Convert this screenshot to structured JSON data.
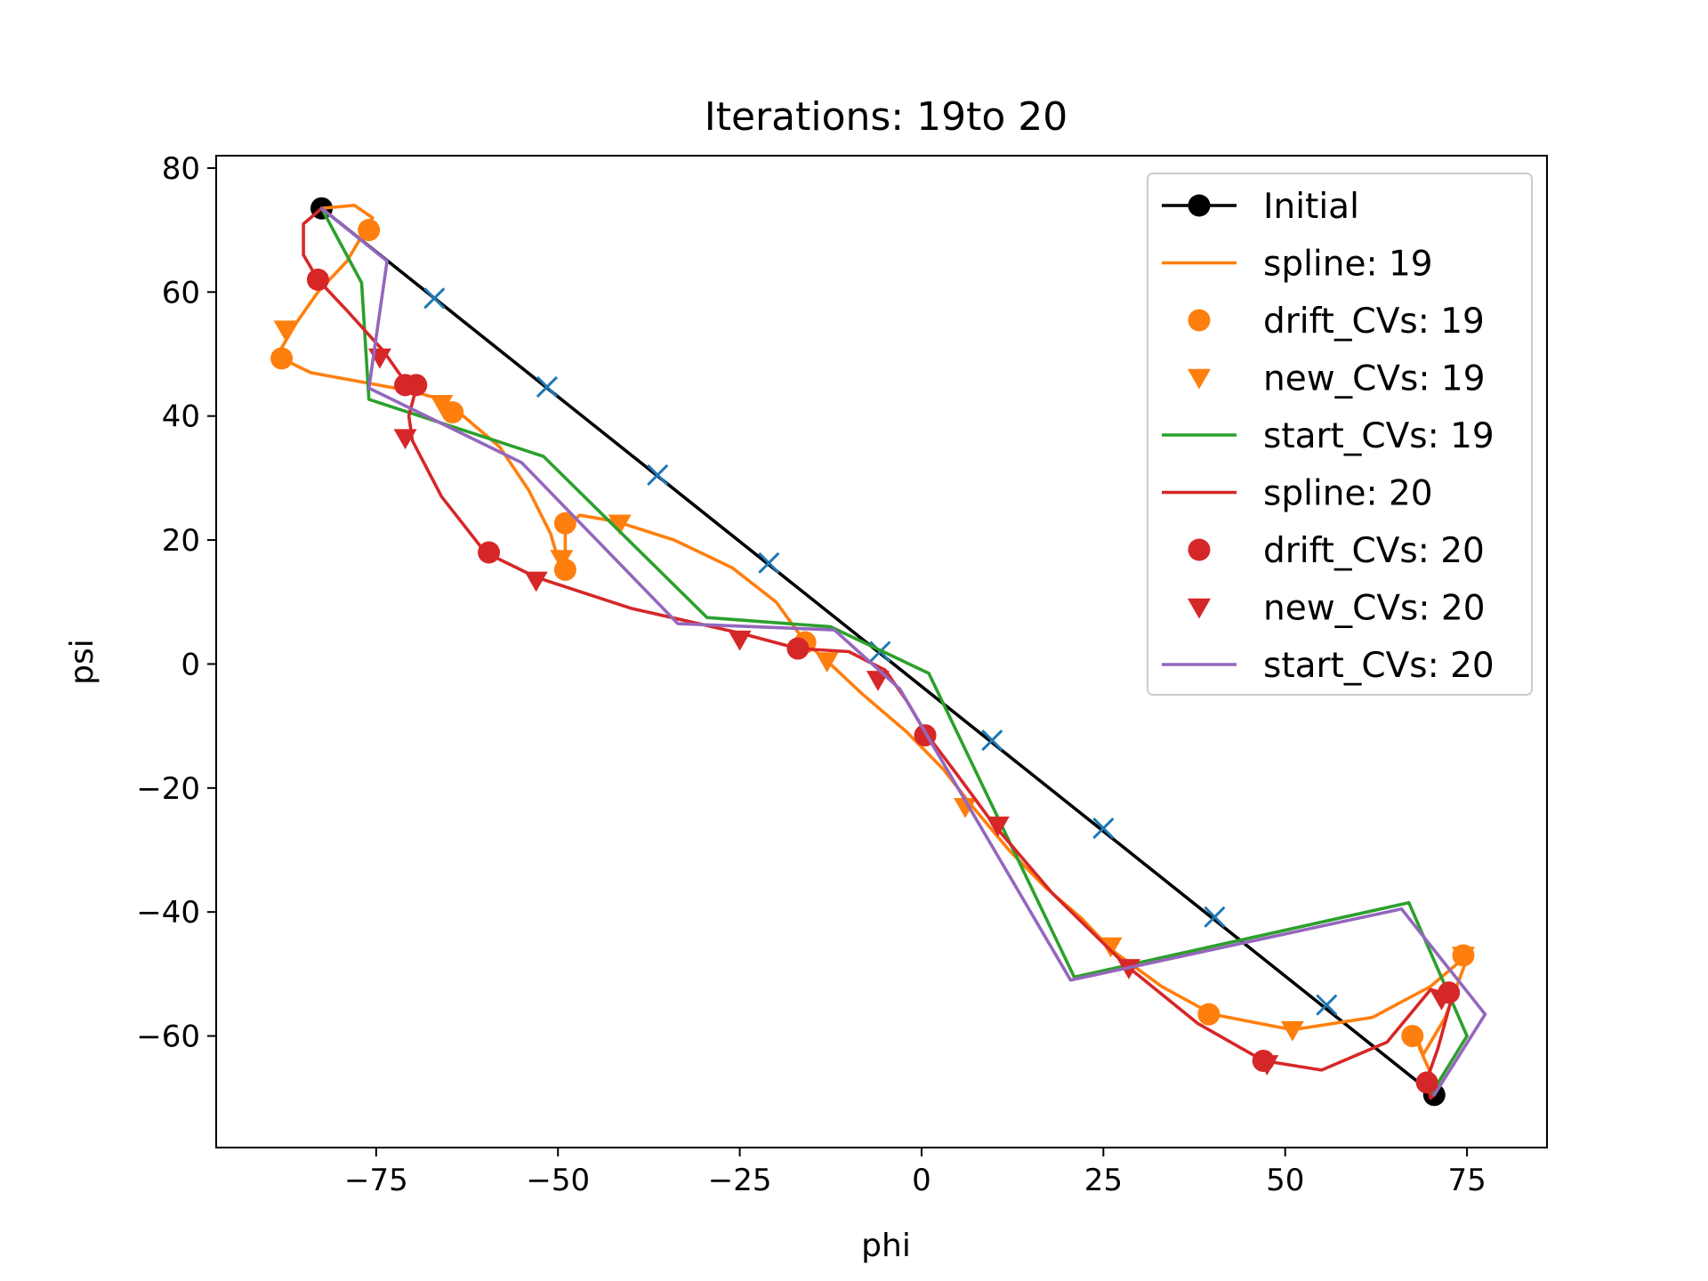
{
  "chart_data": {
    "type": "line",
    "title": "Iterations: 19to 20",
    "xlabel": "phi",
    "ylabel": "psi",
    "xlim": [
      -97,
      86
    ],
    "ylim": [
      -78,
      82
    ],
    "xticks": [
      -75,
      -50,
      -25,
      0,
      25,
      50,
      75
    ],
    "yticks": [
      -60,
      -40,
      -20,
      0,
      20,
      40,
      60,
      80
    ],
    "xtick_labels": [
      "−75",
      "−50",
      "−25",
      "0",
      "25",
      "50",
      "75"
    ],
    "ytick_labels": [
      "−60",
      "−40",
      "−20",
      "0",
      "20",
      "40",
      "60",
      "80"
    ],
    "grid": false,
    "legend_position": "top-right",
    "series": [
      {
        "name": "Initial",
        "kind": "line-marker",
        "color": "#000000",
        "points": [
          [
            -82.5,
            73.5
          ],
          [
            70.5,
            -69.5
          ]
        ],
        "markers": [
          [
            -82.5,
            73.5
          ],
          [
            70.5,
            -69.5
          ]
        ],
        "intermediate_points": [
          [
            -67,
            59
          ],
          [
            -51.5,
            44.7
          ],
          [
            -36.3,
            30.5
          ],
          [
            -21,
            16.3
          ],
          [
            -5.7,
            2
          ],
          [
            9.7,
            -12.3
          ],
          [
            25,
            -26.5
          ],
          [
            40.3,
            -40.8
          ],
          [
            55.7,
            -55
          ]
        ]
      },
      {
        "name": "spline: 19",
        "kind": "line",
        "color": "#ff7f0e",
        "points": [
          [
            -82.5,
            73.5
          ],
          [
            -78,
            74
          ],
          [
            -75.5,
            72
          ],
          [
            -77,
            69
          ],
          [
            -79,
            65
          ],
          [
            -83,
            60
          ],
          [
            -86,
            55
          ],
          [
            -88,
            51
          ],
          [
            -87.5,
            49
          ],
          [
            -84,
            47
          ],
          [
            -77,
            45.5
          ],
          [
            -70,
            44
          ],
          [
            -65.5,
            42.5
          ],
          [
            -63,
            40
          ],
          [
            -58,
            35
          ],
          [
            -54,
            28
          ],
          [
            -51,
            21
          ],
          [
            -50,
            17
          ],
          [
            -49,
            15.5
          ],
          [
            -49,
            22
          ],
          [
            -47,
            24
          ],
          [
            -42,
            23
          ],
          [
            -34,
            20
          ],
          [
            -26,
            15.5
          ],
          [
            -20,
            10
          ],
          [
            -16,
            3.5
          ],
          [
            -13,
            0.5
          ],
          [
            -8,
            -5
          ],
          [
            -2,
            -11
          ],
          [
            3,
            -17
          ],
          [
            7,
            -23
          ],
          [
            12,
            -30
          ],
          [
            17,
            -36
          ],
          [
            22,
            -41
          ],
          [
            26,
            -46
          ],
          [
            33,
            -52
          ],
          [
            40,
            -56.5
          ],
          [
            51,
            -59
          ],
          [
            62,
            -57
          ],
          [
            70,
            -52
          ],
          [
            75,
            -47
          ],
          [
            75,
            -47.5
          ],
          [
            72,
            -57
          ],
          [
            69,
            -63
          ],
          [
            68,
            -60
          ],
          [
            68.5,
            -62
          ],
          [
            70,
            -66
          ]
        ],
        "markers": [],
        "intermediate_points": []
      },
      {
        "name": "drift_CVs: 19",
        "kind": "marker-circle",
        "color": "#ff7f0e",
        "points": [],
        "markers": [
          [
            -76,
            70
          ],
          [
            -88,
            49.3
          ],
          [
            -64.5,
            40.6
          ],
          [
            -49,
            22.7
          ],
          [
            -49,
            15.2
          ],
          [
            -16,
            3.5
          ],
          [
            39.5,
            -56.5
          ],
          [
            67.5,
            -60
          ],
          [
            74.5,
            -47
          ]
        ],
        "intermediate_points": []
      },
      {
        "name": "new_CVs: 19",
        "kind": "marker-triangle",
        "color": "#ff7f0e",
        "points": [],
        "markers": [
          [
            -87.5,
            54
          ],
          [
            -66,
            42
          ],
          [
            -49.5,
            17
          ],
          [
            -41.5,
            22.7
          ],
          [
            -13,
            0.5
          ],
          [
            6,
            -23
          ],
          [
            26,
            -45.5
          ],
          [
            51,
            -59
          ],
          [
            74.5,
            -47
          ]
        ],
        "intermediate_points": []
      },
      {
        "name": "start_CVs: 19",
        "kind": "line",
        "color": "#2ca02c",
        "points": [
          [
            -82.5,
            73.5
          ],
          [
            -77,
            61.5
          ],
          [
            -76,
            42.7
          ],
          [
            -52,
            33.5
          ],
          [
            -29.5,
            7.5
          ],
          [
            -12.5,
            6
          ],
          [
            1,
            -1.5
          ],
          [
            21,
            -50.5
          ],
          [
            67,
            -38.5
          ],
          [
            75,
            -60
          ],
          [
            70,
            -69.5
          ]
        ],
        "markers": [],
        "intermediate_points": []
      },
      {
        "name": "spline: 20",
        "kind": "line",
        "color": "#d62728",
        "points": [
          [
            -82.5,
            73.5
          ],
          [
            -85,
            71
          ],
          [
            -85,
            66
          ],
          [
            -83,
            62
          ],
          [
            -79,
            57
          ],
          [
            -74,
            50.5
          ],
          [
            -71,
            45.5
          ],
          [
            -69.5,
            44.5
          ],
          [
            -70.5,
            40
          ],
          [
            -70,
            36
          ],
          [
            -66,
            27
          ],
          [
            -60,
            18
          ],
          [
            -53,
            14
          ],
          [
            -40,
            9
          ],
          [
            -25,
            5
          ],
          [
            -17,
            2.5
          ],
          [
            -10,
            2
          ],
          [
            -5,
            -1
          ],
          [
            -2,
            -6
          ],
          [
            0.5,
            -11
          ],
          [
            5,
            -18
          ],
          [
            10,
            -26
          ],
          [
            18,
            -37
          ],
          [
            28,
            -48.5
          ],
          [
            38,
            -58
          ],
          [
            47,
            -64
          ],
          [
            55,
            -65.5
          ],
          [
            64,
            -61
          ],
          [
            70,
            -52.5
          ],
          [
            73,
            -53.5
          ],
          [
            71,
            -62
          ],
          [
            69.5,
            -67
          ],
          [
            70,
            -70
          ],
          [
            70.5,
            -69.5
          ]
        ],
        "markers": [],
        "intermediate_points": []
      },
      {
        "name": "drift_CVs: 20",
        "kind": "marker-circle",
        "color": "#d62728",
        "points": [],
        "markers": [
          [
            -83,
            62
          ],
          [
            -71,
            45
          ],
          [
            -69.5,
            45
          ],
          [
            -59.5,
            18
          ],
          [
            -17,
            2.5
          ],
          [
            0.5,
            -11.5
          ],
          [
            47,
            -64
          ],
          [
            69.5,
            -67.5
          ],
          [
            72.5,
            -53
          ]
        ],
        "intermediate_points": []
      },
      {
        "name": "new_CVs: 20",
        "kind": "marker-triangle",
        "color": "#d62728",
        "points": [],
        "markers": [
          [
            -74.5,
            49.5
          ],
          [
            -71,
            36.5
          ],
          [
            -53,
            13.5
          ],
          [
            -25,
            4
          ],
          [
            -6,
            -2.5
          ],
          [
            10.5,
            -26
          ],
          [
            28.5,
            -49
          ],
          [
            47.5,
            -64.5
          ],
          [
            71.5,
            -54
          ]
        ],
        "intermediate_points": []
      },
      {
        "name": "start_CVs: 20",
        "kind": "line",
        "color": "#9467bd",
        "points": [
          [
            -82.5,
            73.5
          ],
          [
            -73.5,
            65
          ],
          [
            -76,
            44.5
          ],
          [
            -55,
            32.5
          ],
          [
            -33.5,
            6.5
          ],
          [
            -12,
            5.5
          ],
          [
            -3,
            -4
          ],
          [
            20.5,
            -51
          ],
          [
            66,
            -39.5
          ],
          [
            77.5,
            -56.5
          ],
          [
            70.5,
            -69.5
          ]
        ],
        "markers": [],
        "intermediate_points": []
      }
    ]
  }
}
